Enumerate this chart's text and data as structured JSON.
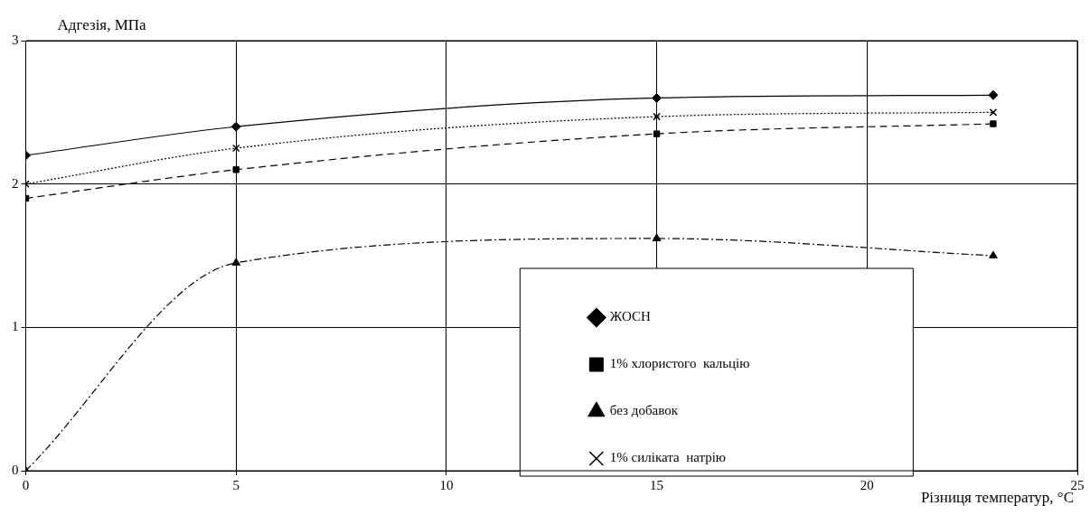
{
  "chart_data": {
    "type": "line",
    "ylabel": "Адгезія, МПа",
    "xlabel": "Різниця температур, °C",
    "x": [
      0,
      5,
      15,
      23
    ],
    "xlim": [
      0,
      25
    ],
    "xticks": [
      0,
      5,
      10,
      15,
      20,
      25
    ],
    "ylim": [
      0,
      3
    ],
    "yticks": [
      0,
      1,
      2,
      3
    ],
    "grid": true,
    "legend": "bottom",
    "series": [
      {
        "name": "ЖОСН",
        "color": "#000000",
        "values": [
          2.2,
          2.4,
          2.6,
          2.62
        ],
        "marker": "diamond",
        "line_style": "solid"
      },
      {
        "name": "1% хлористого  кальцію",
        "color": "#000000",
        "values": [
          1.9,
          2.1,
          2.35,
          2.42
        ],
        "marker": "square",
        "line_style": "dashed"
      },
      {
        "name": "без добавок",
        "color": "#000000",
        "values": [
          0,
          1.45,
          1.62,
          1.5
        ],
        "marker": "triangle",
        "line_style": "dashdot"
      },
      {
        "name": "1% силіката  натрію",
        "color": "#000000",
        "values": [
          2.0,
          2.25,
          2.47,
          2.5
        ],
        "marker": "cross",
        "line_style": "dotted"
      }
    ]
  }
}
